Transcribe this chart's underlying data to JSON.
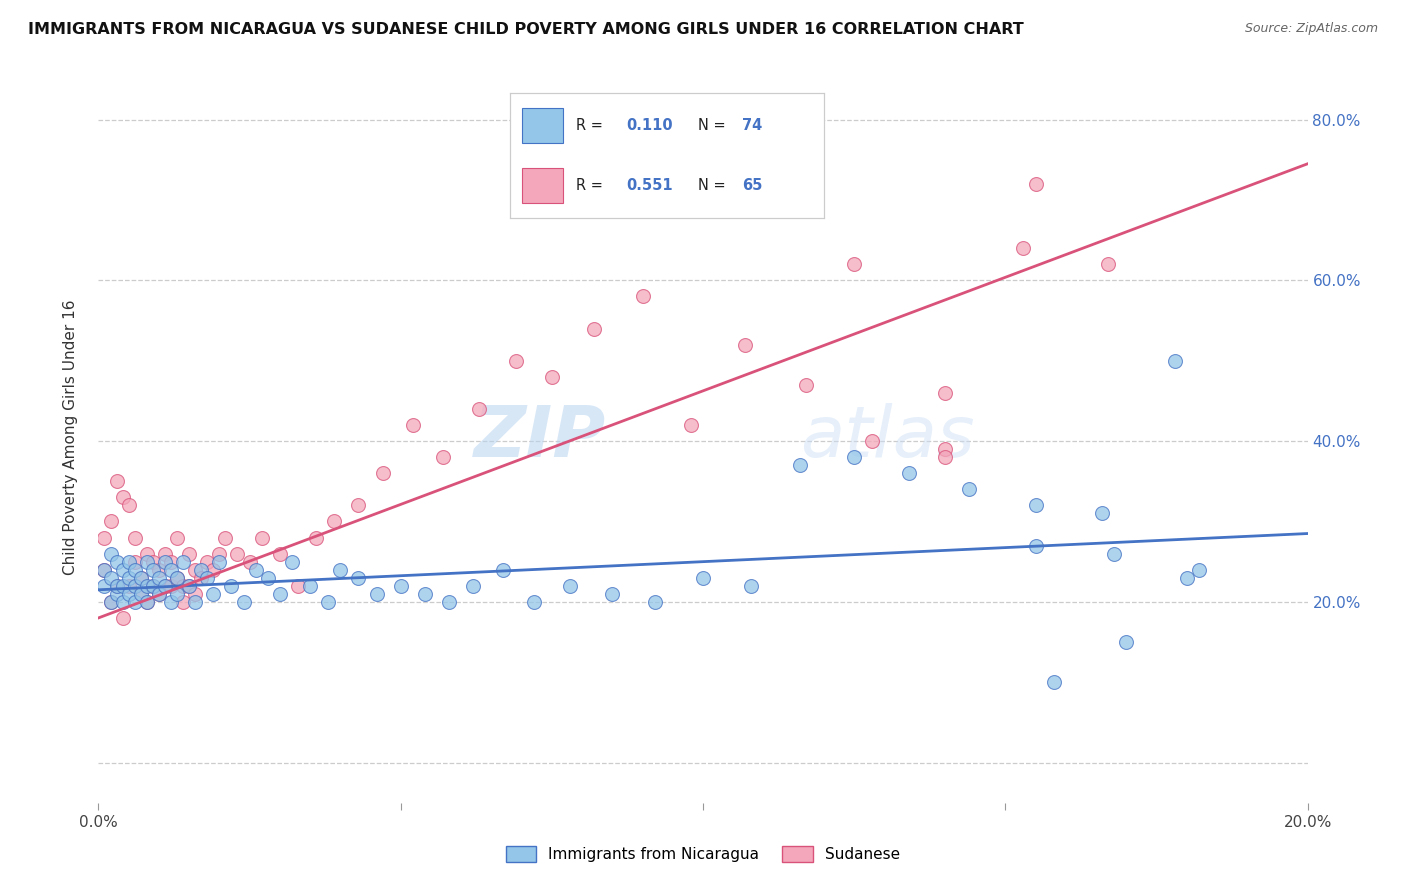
{
  "title": "IMMIGRANTS FROM NICARAGUA VS SUDANESE CHILD POVERTY AMONG GIRLS UNDER 16 CORRELATION CHART",
  "source": "Source: ZipAtlas.com",
  "ylabel": "Child Poverty Among Girls Under 16",
  "yticks": [
    0.0,
    0.2,
    0.4,
    0.6,
    0.8
  ],
  "ytick_labels_right": [
    "",
    "20.0%",
    "40.0%",
    "60.0%",
    "80.0%"
  ],
  "xlim": [
    0.0,
    0.2
  ],
  "ylim": [
    -0.05,
    0.86
  ],
  "color_blue": "#93c6e8",
  "color_pink": "#f4a7ba",
  "color_blue_line": "#4472c4",
  "color_pink_line": "#d9527a",
  "watermark_zip": "ZIP",
  "watermark_atlas": "atlas",
  "blue_scatter_x": [
    0.001,
    0.001,
    0.002,
    0.002,
    0.002,
    0.003,
    0.003,
    0.003,
    0.004,
    0.004,
    0.004,
    0.005,
    0.005,
    0.005,
    0.006,
    0.006,
    0.006,
    0.007,
    0.007,
    0.008,
    0.008,
    0.008,
    0.009,
    0.009,
    0.01,
    0.01,
    0.011,
    0.011,
    0.012,
    0.012,
    0.013,
    0.013,
    0.014,
    0.015,
    0.016,
    0.017,
    0.018,
    0.019,
    0.02,
    0.022,
    0.024,
    0.026,
    0.028,
    0.03,
    0.032,
    0.035,
    0.038,
    0.04,
    0.043,
    0.046,
    0.05,
    0.054,
    0.058,
    0.062,
    0.067,
    0.072,
    0.078,
    0.085,
    0.092,
    0.1,
    0.108,
    0.116,
    0.125,
    0.134,
    0.144,
    0.155,
    0.166,
    0.178,
    0.158,
    0.17,
    0.182,
    0.155,
    0.168,
    0.18
  ],
  "blue_scatter_y": [
    0.24,
    0.22,
    0.2,
    0.26,
    0.23,
    0.21,
    0.25,
    0.22,
    0.2,
    0.24,
    0.22,
    0.23,
    0.21,
    0.25,
    0.22,
    0.2,
    0.24,
    0.23,
    0.21,
    0.25,
    0.22,
    0.2,
    0.24,
    0.22,
    0.23,
    0.21,
    0.25,
    0.22,
    0.2,
    0.24,
    0.23,
    0.21,
    0.25,
    0.22,
    0.2,
    0.24,
    0.23,
    0.21,
    0.25,
    0.22,
    0.2,
    0.24,
    0.23,
    0.21,
    0.25,
    0.22,
    0.2,
    0.24,
    0.23,
    0.21,
    0.22,
    0.21,
    0.2,
    0.22,
    0.24,
    0.2,
    0.22,
    0.21,
    0.2,
    0.23,
    0.22,
    0.37,
    0.38,
    0.36,
    0.34,
    0.32,
    0.31,
    0.5,
    0.1,
    0.15,
    0.24,
    0.27,
    0.26,
    0.23
  ],
  "pink_scatter_x": [
    0.001,
    0.001,
    0.002,
    0.002,
    0.003,
    0.003,
    0.004,
    0.004,
    0.005,
    0.005,
    0.006,
    0.006,
    0.007,
    0.007,
    0.008,
    0.008,
    0.009,
    0.009,
    0.01,
    0.01,
    0.011,
    0.011,
    0.012,
    0.012,
    0.013,
    0.013,
    0.014,
    0.014,
    0.015,
    0.015,
    0.016,
    0.016,
    0.017,
    0.018,
    0.019,
    0.02,
    0.021,
    0.023,
    0.025,
    0.027,
    0.03,
    0.033,
    0.036,
    0.039,
    0.043,
    0.047,
    0.052,
    0.057,
    0.063,
    0.069,
    0.075,
    0.082,
    0.09,
    0.098,
    0.107,
    0.117,
    0.128,
    0.14,
    0.153,
    0.167,
    0.14,
    0.155,
    0.14,
    0.125,
    0.108
  ],
  "pink_scatter_y": [
    0.28,
    0.24,
    0.3,
    0.2,
    0.35,
    0.22,
    0.33,
    0.18,
    0.32,
    0.22,
    0.28,
    0.25,
    0.23,
    0.21,
    0.26,
    0.2,
    0.25,
    0.22,
    0.24,
    0.21,
    0.26,
    0.22,
    0.25,
    0.22,
    0.28,
    0.23,
    0.22,
    0.2,
    0.26,
    0.22,
    0.24,
    0.21,
    0.23,
    0.25,
    0.24,
    0.26,
    0.28,
    0.26,
    0.25,
    0.28,
    0.26,
    0.22,
    0.28,
    0.3,
    0.32,
    0.36,
    0.42,
    0.38,
    0.44,
    0.5,
    0.48,
    0.54,
    0.58,
    0.42,
    0.52,
    0.47,
    0.4,
    0.46,
    0.64,
    0.62,
    0.39,
    0.72,
    0.38,
    0.62,
    0.72
  ],
  "blue_trend_x": [
    0.0,
    0.2
  ],
  "blue_trend_y": [
    0.215,
    0.285
  ],
  "pink_trend_x": [
    0.0,
    0.2
  ],
  "pink_trend_y": [
    0.18,
    0.745
  ],
  "legend_label1": "Immigrants from Nicaragua",
  "legend_label2": "Sudanese"
}
